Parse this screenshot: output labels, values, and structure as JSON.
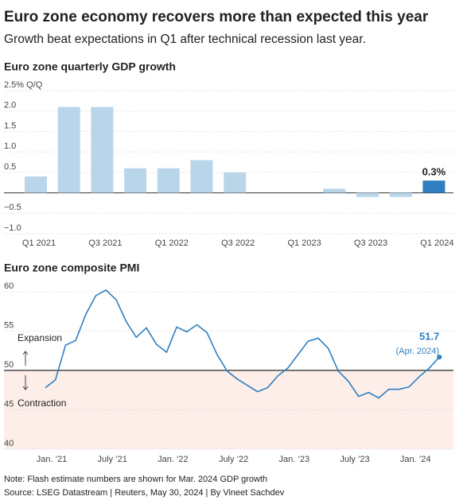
{
  "title": "Euro zone economy recovers more than expected this year",
  "subtitle": "Growth beat expectations in Q1 after technical recession last year.",
  "note": "Note: Flash estimate numbers are shown for Mar. 2024 GDP growth",
  "source": "Source: LSEG Datastream  |  Reuters, May 30, 2024  |  By Vineet Sachdev",
  "chart_data": [
    {
      "type": "bar",
      "title": "Euro zone quarterly GDP growth",
      "categories": [
        "Q1 2021",
        null,
        "Q3 2021",
        null,
        "Q1 2022",
        null,
        "Q3 2022",
        null,
        "Q1 2023",
        null,
        "Q3 2023",
        null,
        "Q1 2024"
      ],
      "values": [
        0.4,
        2.1,
        2.1,
        0.6,
        0.6,
        0.8,
        0.5,
        0.0,
        0.0,
        0.1,
        -0.1,
        -0.1,
        0.3
      ],
      "value_labels": [
        null,
        null,
        null,
        null,
        null,
        null,
        null,
        null,
        null,
        null,
        null,
        null,
        "0.3%"
      ],
      "colors": [
        "#b9d5ea",
        "#b9d5ea",
        "#b9d5ea",
        "#b9d5ea",
        "#b9d5ea",
        "#b9d5ea",
        "#b9d5ea",
        "#b9d5ea",
        "#b9d5ea",
        "#b9d5ea",
        "#b9d5ea",
        "#b9d5ea",
        "#2f7fc1"
      ],
      "ylim": [
        -1,
        2.5
      ],
      "yticks": [
        {
          "value": -1,
          "label": "−1.0"
        },
        {
          "value": -0.5,
          "label": "−0.5"
        },
        0.5,
        {
          "value": 1,
          "label": "1.0"
        },
        1.5,
        {
          "value": 2,
          "label": "2.0"
        },
        {
          "value": 2.5,
          "label": "2.5% Q/Q"
        }
      ],
      "grid": true
    },
    {
      "type": "line",
      "title": "Euro zone composite PMI",
      "categories": [
        "Jan. ’21",
        null,
        null,
        null,
        null,
        null,
        "July ’21",
        null,
        null,
        null,
        null,
        null,
        "Jan. ’22",
        null,
        null,
        null,
        null,
        null,
        "July ’22",
        null,
        null,
        null,
        null,
        null,
        "Jan. ’23",
        null,
        null,
        null,
        null,
        null,
        "July ’23",
        null,
        null,
        null,
        null,
        null,
        "Jan. ’24",
        null,
        null,
        null
      ],
      "values": [
        47.8,
        48.8,
        53.2,
        53.8,
        57.1,
        59.5,
        60.2,
        59.0,
        56.2,
        54.2,
        55.4,
        53.3,
        52.3,
        55.5,
        54.9,
        55.8,
        54.8,
        52.0,
        49.9,
        48.9,
        48.1,
        47.3,
        47.8,
        49.3,
        50.3,
        52.0,
        53.7,
        54.1,
        52.8,
        49.9,
        48.6,
        46.7,
        47.2,
        46.5,
        47.6,
        47.6,
        47.9,
        49.2,
        50.3,
        51.7
      ],
      "value_labels": [
        null,
        null,
        null,
        null,
        null,
        null,
        null,
        null,
        null,
        null,
        null,
        null,
        null,
        null,
        null,
        null,
        null,
        null,
        null,
        null,
        null,
        null,
        null,
        null,
        null,
        null,
        null,
        null,
        null,
        null,
        null,
        null,
        null,
        null,
        null,
        null,
        null,
        null,
        null,
        "51.7"
      ],
      "color": "#2f7fc1",
      "ylim": [
        40,
        61.5
      ],
      "yticks": [
        40,
        45,
        50,
        55,
        60
      ],
      "threshold": 50,
      "annotations": [
        "Expansion",
        "Contraction",
        "(Apr. 2024)"
      ],
      "grid": true
    }
  ]
}
